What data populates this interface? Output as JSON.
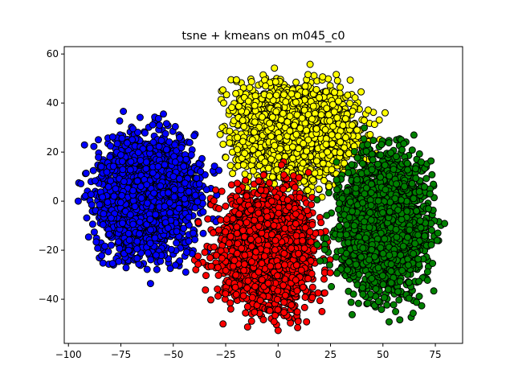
{
  "chart_data": {
    "type": "scatter",
    "title": "tsne + kmeans on m045_c0",
    "xlabel": "",
    "ylabel": "",
    "xlim": [
      -102,
      88
    ],
    "ylim": [
      -58,
      63
    ],
    "xticks": [
      -100,
      -75,
      -50,
      -25,
      0,
      25,
      50,
      75
    ],
    "yticks": [
      -40,
      -20,
      0,
      20,
      40,
      60
    ],
    "xtick_labels": [
      "−100",
      "−75",
      "−50",
      "−25",
      "0",
      "25",
      "50",
      "75"
    ],
    "ytick_labels": [
      "−40",
      "−20",
      "0",
      "20",
      "40",
      "60"
    ],
    "grid": false,
    "legend": "none",
    "marker": "circle, black edge",
    "clusters": [
      {
        "color": "#0000ff",
        "center": [
          -62,
          2
        ],
        "x_range": [
          -97,
          -25
        ],
        "y_range": [
          -35,
          38
        ],
        "approx_points": 2200
      },
      {
        "color": "#ffff00",
        "center": [
          8,
          28
        ],
        "x_range": [
          -28,
          60
        ],
        "y_range": [
          -1,
          57
        ],
        "approx_points": 2200
      },
      {
        "color": "#ff0000",
        "center": [
          -5,
          -20
        ],
        "x_range": [
          -45,
          25
        ],
        "y_range": [
          -53,
          22
        ],
        "approx_points": 2000
      },
      {
        "color": "#008000",
        "center": [
          50,
          -10
        ],
        "x_range": [
          15,
          80
        ],
        "y_range": [
          -51,
          33
        ],
        "approx_points": 2200
      }
    ]
  }
}
